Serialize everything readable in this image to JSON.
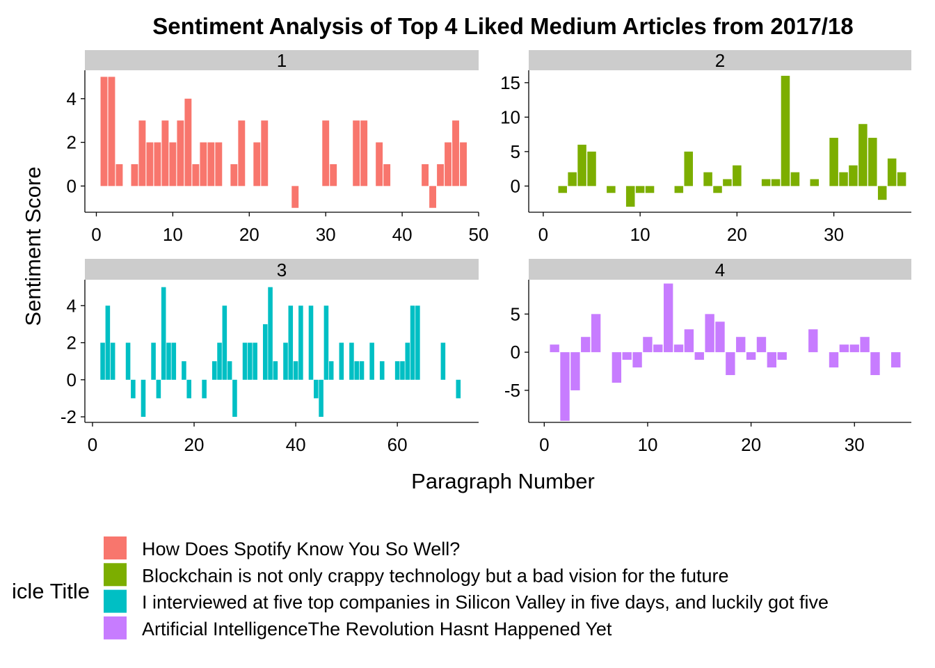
{
  "chart_data": {
    "type": "bar",
    "title": "Sentiment Analysis of Top 4 Liked Medium Articles from 2017/18",
    "xlabel": "Paragraph Number",
    "ylabel": "Sentiment Score",
    "legend": {
      "title": "Article Title",
      "title_visible": "icle Title",
      "position": "bottom",
      "entries": [
        {
          "label": "How Does Spotify Know You So Well?",
          "color": "#F8766D"
        },
        {
          "label": "Blockchain is not only crappy technology but a bad vision for the future",
          "color": "#7CAE00"
        },
        {
          "label": "I interviewed at five top companies in Silicon Valley in five days, and luckily got five job offers",
          "label_visible": "I interviewed at five top companies in Silicon Valley in five days, and luckily got five",
          "color": "#00BFC4"
        },
        {
          "label": "Artificial IntelligenceThe Revolution Hasnt Happened Yet",
          "color": "#C77CFF"
        }
      ]
    },
    "panels": [
      {
        "strip": "1",
        "color": "#F8766D",
        "xlim": [
          -1.5,
          50
        ],
        "ylim": [
          -1.2,
          5.3
        ],
        "xticks": [
          0,
          10,
          20,
          30,
          40,
          50
        ],
        "yticks": [
          0,
          2,
          4
        ],
        "x": [
          1,
          2,
          3,
          5,
          6,
          7,
          8,
          9,
          10,
          11,
          12,
          13,
          14,
          15,
          16,
          18,
          19,
          21,
          22,
          26,
          30,
          31,
          34,
          35,
          37,
          38,
          43,
          44,
          45,
          46,
          47,
          48
        ],
        "values": [
          5,
          5,
          1,
          1,
          3,
          2,
          2,
          3,
          2,
          3,
          4,
          1,
          2,
          2,
          2,
          1,
          3,
          2,
          3,
          -1,
          3,
          1,
          3,
          3,
          2,
          1,
          1,
          -1,
          1,
          2,
          3,
          2
        ]
      },
      {
        "strip": "2",
        "color": "#7CAE00",
        "xlim": [
          -1.5,
          38
        ],
        "ylim": [
          -3.8,
          16.8
        ],
        "xticks": [
          0,
          10,
          20,
          30
        ],
        "yticks": [
          0,
          5,
          10,
          15
        ],
        "x": [
          2,
          3,
          4,
          5,
          7,
          9,
          10,
          11,
          14,
          15,
          17,
          18,
          19,
          20,
          23,
          24,
          25,
          26,
          28,
          30,
          31,
          32,
          33,
          34,
          35,
          36,
          37
        ],
        "values": [
          -1,
          2,
          6,
          5,
          -1,
          -3,
          -1,
          -1,
          -1,
          5,
          2,
          -1,
          1,
          3,
          1,
          1,
          16,
          2,
          1,
          7,
          2,
          3,
          9,
          7,
          -2,
          4,
          2
        ]
      },
      {
        "strip": "3",
        "color": "#00BFC4",
        "xlim": [
          -1.5,
          76
        ],
        "ylim": [
          -2.3,
          5.4
        ],
        "xticks": [
          0,
          20,
          40,
          60
        ],
        "yticks": [
          -2,
          0,
          2,
          4
        ],
        "x": [
          2,
          3,
          4,
          7,
          8,
          10,
          12,
          13,
          14,
          15,
          16,
          18,
          19,
          22,
          24,
          25,
          26,
          27,
          28,
          30,
          31,
          32,
          34,
          35,
          36,
          38,
          39,
          40,
          41,
          43,
          44,
          45,
          46,
          47,
          49,
          51,
          52,
          53,
          55,
          57,
          60,
          61,
          62,
          63,
          64,
          69,
          72
        ],
        "values": [
          2,
          4,
          2,
          2,
          -1,
          -2,
          2,
          -1,
          5,
          2,
          2,
          1,
          -1,
          -1,
          1,
          2,
          4,
          1,
          -2,
          2,
          2,
          2,
          3,
          5,
          1,
          2,
          4,
          1,
          4,
          4,
          -1,
          -2,
          4,
          1,
          2,
          2,
          1,
          1,
          2,
          1,
          1,
          1,
          2,
          4,
          4,
          2,
          -1
        ]
      },
      {
        "strip": "4",
        "color": "#C77CFF",
        "xlim": [
          -1.5,
          35.5
        ],
        "ylim": [
          -9.2,
          9.5
        ],
        "xticks": [
          0,
          10,
          20,
          30
        ],
        "yticks": [
          -5,
          0,
          5
        ],
        "x": [
          1,
          2,
          3,
          4,
          5,
          7,
          8,
          9,
          10,
          11,
          12,
          13,
          14,
          15,
          16,
          17,
          18,
          19,
          20,
          21,
          22,
          23,
          26,
          28,
          29,
          30,
          31,
          32,
          34
        ],
        "values": [
          1,
          -9,
          -5,
          2,
          5,
          -4,
          -1,
          -2,
          2,
          1,
          9,
          1,
          3,
          -1,
          5,
          4,
          -3,
          2,
          -1,
          2,
          -2,
          -1,
          3,
          -2,
          1,
          1,
          2,
          -3,
          -2
        ]
      }
    ]
  }
}
